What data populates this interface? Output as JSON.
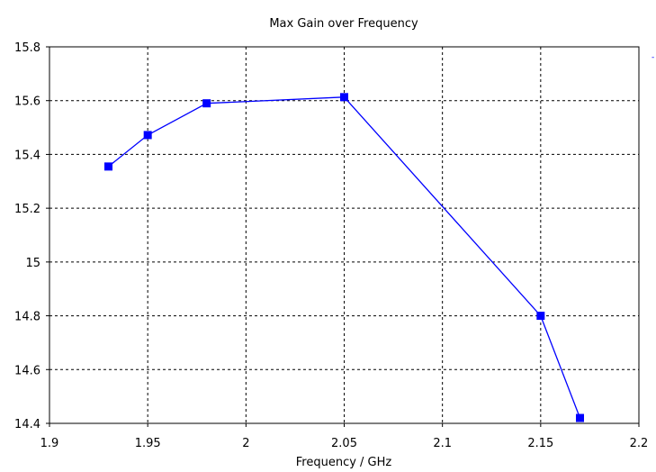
{
  "chart_data": {
    "type": "line",
    "title": "Max Gain over Frequency",
    "xlabel": "Frequency / GHz",
    "ylabel": "",
    "xlim": [
      1.9,
      2.2
    ],
    "ylim": [
      14.4,
      15.8
    ],
    "xticks": [
      "1.9",
      "1.95",
      "2",
      "2.05",
      "2.1",
      "2.15",
      "2.2"
    ],
    "yticks": [
      "14.4",
      "14.6",
      "14.8",
      "15",
      "15.2",
      "15.4",
      "15.6",
      "15.8"
    ],
    "grid": true,
    "series": [
      {
        "color": "#0000ff",
        "marker": "square",
        "x": [
          1.93,
          1.95,
          1.98,
          2.05,
          2.15,
          2.17
        ],
        "y": [
          15.355,
          15.472,
          15.59,
          15.613,
          14.8,
          14.42
        ]
      }
    ]
  }
}
